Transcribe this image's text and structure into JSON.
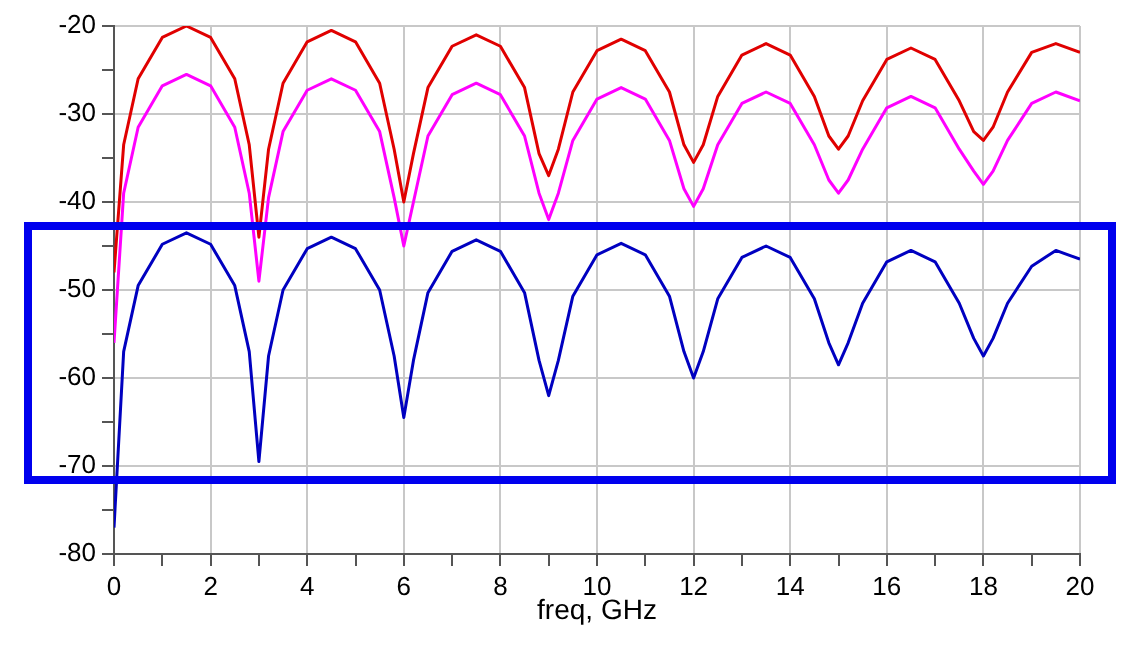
{
  "chart_data": {
    "type": "line",
    "xlabel": "freq, GHz",
    "x": [
      0,
      0.2,
      0.5,
      1,
      1.5,
      2,
      2.5,
      2.8,
      3,
      3.2,
      3.5,
      4,
      4.5,
      5,
      5.5,
      5.8,
      6,
      6.2,
      6.5,
      7,
      7.5,
      8,
      8.5,
      8.8,
      9,
      9.2,
      9.5,
      10,
      10.5,
      11,
      11.5,
      11.8,
      12,
      12.2,
      12.5,
      13,
      13.5,
      14,
      14.5,
      14.8,
      15,
      15.2,
      15.5,
      16,
      16.5,
      17,
      17.5,
      17.8,
      18,
      18.2,
      18.5,
      19,
      19.5,
      20
    ],
    "series": [
      {
        "color": "#e00000",
        "values": [
          -48,
          -33.5,
          -26,
          -21.3,
          -20,
          -21.3,
          -26,
          -33.5,
          -44,
          -34,
          -26.5,
          -21.8,
          -20.5,
          -21.8,
          -26.5,
          -34,
          -40,
          -34.5,
          -27,
          -22.3,
          -21,
          -22.3,
          -27,
          -34.5,
          -37,
          -34,
          -27.5,
          -22.8,
          -21.5,
          -22.8,
          -27.5,
          -33.5,
          -35.5,
          -33.5,
          -28,
          -23.3,
          -22,
          -23.3,
          -28,
          -32.5,
          -34,
          -32.5,
          -28.5,
          -23.8,
          -22.5,
          -23.8,
          -28.5,
          -32,
          -33,
          -31.5,
          -27.5,
          -23,
          -22,
          -23
        ]
      },
      {
        "color": "#ff00ff",
        "values": [
          -56,
          -39,
          -31.5,
          -26.8,
          -25.5,
          -26.8,
          -31.5,
          -39,
          -49,
          -39.5,
          -32,
          -27.3,
          -26,
          -27.3,
          -32,
          -39.5,
          -45,
          -40,
          -32.5,
          -27.8,
          -26.5,
          -27.8,
          -32.5,
          -39,
          -42,
          -39,
          -33,
          -28.3,
          -27,
          -28.3,
          -33,
          -38.5,
          -40.5,
          -38.5,
          -33.5,
          -28.8,
          -27.5,
          -28.8,
          -33.5,
          -37.5,
          -39,
          -37.5,
          -34,
          -29.3,
          -28,
          -29.3,
          -34,
          -36.5,
          -38,
          -36.5,
          -33,
          -28.8,
          -27.5,
          -28.5
        ]
      },
      {
        "color": "#0000c0",
        "values": [
          -77,
          -57,
          -49.5,
          -44.8,
          -43.5,
          -44.8,
          -49.5,
          -57,
          -69.5,
          -57.5,
          -50,
          -45.3,
          -44,
          -45.3,
          -50,
          -57.5,
          -64.5,
          -58,
          -50.3,
          -45.6,
          -44.3,
          -45.6,
          -50.3,
          -58,
          -62,
          -58,
          -50.7,
          -46,
          -44.7,
          -46,
          -50.7,
          -57,
          -60,
          -57,
          -51,
          -46.3,
          -45,
          -46.3,
          -51,
          -56,
          -58.5,
          -56,
          -51.5,
          -46.8,
          -45.5,
          -46.8,
          -51.5,
          -55.5,
          -57.5,
          -55.5,
          -51.5,
          -47.3,
          -45.5,
          -46.5
        ]
      }
    ],
    "xlim": [
      0,
      20
    ],
    "ylim": [
      -80,
      -20
    ],
    "xticks": [
      0,
      {
        "value": 1,
        "label": null
      },
      2,
      {
        "value": 3,
        "label": null
      },
      4,
      {
        "value": 5,
        "label": null
      },
      6,
      {
        "value": 7,
        "label": null
      },
      8,
      {
        "value": 9,
        "label": null
      },
      10,
      {
        "value": 11,
        "label": null
      },
      12,
      {
        "value": 13,
        "label": null
      },
      14,
      {
        "value": 15,
        "label": null
      },
      16,
      {
        "value": 17,
        "label": null
      },
      18,
      {
        "value": 19,
        "label": null
      },
      20
    ],
    "yticks": [
      -80,
      {
        "value": -75,
        "label": null
      },
      -70,
      {
        "value": -65,
        "label": null
      },
      -60,
      {
        "value": -55,
        "label": null
      },
      -50,
      {
        "value": -45,
        "label": null
      },
      -40,
      {
        "value": -35,
        "label": null
      },
      -30,
      {
        "value": -25,
        "label": null
      },
      -20
    ],
    "grid": true
  }
}
